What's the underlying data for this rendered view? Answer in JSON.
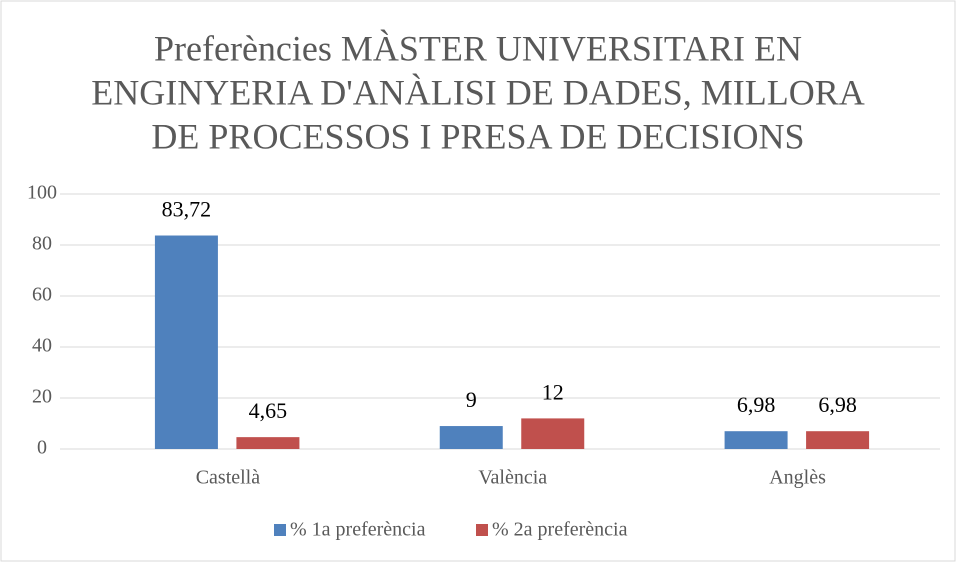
{
  "chart_data": {
    "type": "bar",
    "title": [
      "Preferències MÀSTER UNIVERSITARI EN",
      "ENGINYERIA D'ANÀLISI DE DADES, MILLORA",
      "DE PROCESSOS I PRESA DE DECISIONS"
    ],
    "categories": [
      "Castellà",
      "València",
      "Anglès"
    ],
    "series": [
      {
        "name": "% 1a preferència",
        "color": "#4f81bd",
        "values": [
          83.72,
          9,
          6.98
        ],
        "value_labels": [
          "83,72",
          "9",
          "6,98"
        ]
      },
      {
        "name": "% 2a preferència",
        "color": "#c0504d",
        "values": [
          4.65,
          12,
          6.98
        ],
        "value_labels": [
          "4,65",
          "12",
          "6,98"
        ]
      }
    ],
    "ylim": [
      0,
      100
    ],
    "yticks": [
      0,
      20,
      40,
      60,
      80,
      100
    ],
    "grid": true,
    "legend": "bottom"
  }
}
